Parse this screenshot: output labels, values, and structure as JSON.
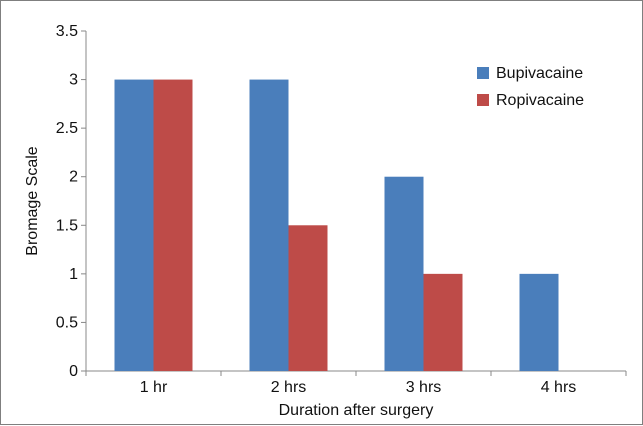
{
  "chart_data": {
    "type": "bar",
    "title": "",
    "xlabel": "Duration after surgery",
    "ylabel": "Bromage Scale",
    "categories": [
      "1 hr",
      "2 hrs",
      "3 hrs",
      "4 hrs"
    ],
    "series": [
      {
        "name": "Bupivacaine",
        "values": [
          3,
          3,
          2,
          1
        ],
        "color": "#4a7ebb"
      },
      {
        "name": "Ropivacaine",
        "values": [
          3,
          1.5,
          1,
          0
        ],
        "color": "#be4b48"
      }
    ],
    "ylim": [
      0,
      3.5
    ],
    "yticks": [
      "0",
      "0.5",
      "1",
      "1.5",
      "2",
      "2.5",
      "3",
      "3.5"
    ],
    "grid": false,
    "legend_position": "top-right"
  }
}
